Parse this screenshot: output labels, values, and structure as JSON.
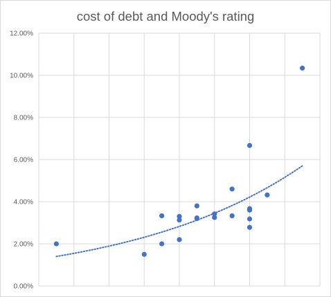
{
  "chart_data": {
    "type": "scatter",
    "title": "cost of debt and Moody's rating",
    "xlabel": "",
    "ylabel": "",
    "xlim": [
      0,
      16
    ],
    "ylim": [
      0,
      0.12
    ],
    "y_tick_labels": [
      "0.00%",
      "2.00%",
      "4.00%",
      "6.00%",
      "8.00%",
      "10.00%",
      "12.00%"
    ],
    "y_ticks": [
      0,
      0.02,
      0.04,
      0.06,
      0.08,
      0.1,
      0.12
    ],
    "x_gridlines": [
      2,
      4,
      6,
      8,
      10,
      12,
      14,
      16
    ],
    "grid": true,
    "marker_color": "#4472c4",
    "trendline": {
      "type": "exponential",
      "style": "dotted",
      "color": "#4472c4",
      "x_start": 1,
      "x_end": 15,
      "y_start": 0.014,
      "y_end": 0.057
    },
    "points": [
      {
        "x": 1.0,
        "y": 0.02
      },
      {
        "x": 6.0,
        "y": 0.015
      },
      {
        "x": 7.0,
        "y": 0.0333
      },
      {
        "x": 7.0,
        "y": 0.02
      },
      {
        "x": 8.0,
        "y": 0.033
      },
      {
        "x": 8.0,
        "y": 0.0313
      },
      {
        "x": 8.0,
        "y": 0.022
      },
      {
        "x": 9.0,
        "y": 0.038
      },
      {
        "x": 9.0,
        "y": 0.0323
      },
      {
        "x": 9.0,
        "y": 0.032
      },
      {
        "x": 10.0,
        "y": 0.0342
      },
      {
        "x": 10.0,
        "y": 0.0325
      },
      {
        "x": 11.0,
        "y": 0.046
      },
      {
        "x": 11.0,
        "y": 0.0333
      },
      {
        "x": 12.0,
        "y": 0.0667
      },
      {
        "x": 12.0,
        "y": 0.0367
      },
      {
        "x": 12.0,
        "y": 0.036
      },
      {
        "x": 12.0,
        "y": 0.0318
      },
      {
        "x": 12.0,
        "y": 0.0278
      },
      {
        "x": 13.0,
        "y": 0.0432
      },
      {
        "x": 15.0,
        "y": 0.1034
      }
    ]
  }
}
